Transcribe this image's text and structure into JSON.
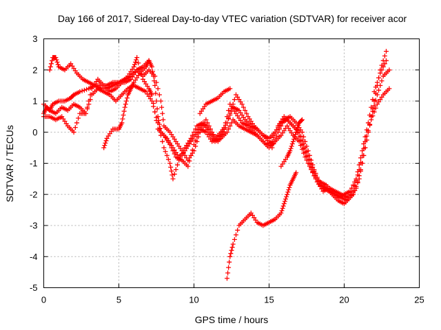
{
  "chart_data": {
    "type": "scatter",
    "title": "Day 166 of 2017, Sidereal Day-to-day VTEC variation (SDTVAR) for receiver acor",
    "xlabel": "GPS time / hours",
    "ylabel": "SDTVAR / TECUs",
    "xlim": [
      0,
      25
    ],
    "ylim": [
      -5,
      3
    ],
    "xticks": [
      0,
      5,
      10,
      15,
      20,
      25
    ],
    "yticks": [
      -5,
      -4,
      -3,
      -2,
      -1,
      0,
      1,
      2,
      3
    ],
    "grid": true,
    "marker": "+",
    "series_color": "#ff0000",
    "series": [
      {
        "points": [
          [
            0.0,
            0.6
          ],
          [
            0.2,
            0.8
          ],
          [
            0.4,
            0.7
          ],
          [
            0.6,
            0.9
          ],
          [
            1.0,
            1.0
          ],
          [
            1.4,
            1.0
          ],
          [
            1.8,
            1.1
          ],
          [
            2.0,
            1.2
          ],
          [
            2.4,
            1.3
          ],
          [
            3.0,
            1.4
          ],
          [
            3.4,
            1.5
          ],
          [
            3.8,
            1.5
          ],
          [
            4.2,
            1.5
          ],
          [
            4.6,
            1.6
          ],
          [
            5.0,
            1.6
          ],
          [
            5.4,
            1.7
          ],
          [
            5.8,
            1.8
          ],
          [
            6.2,
            2.0
          ],
          [
            6.6,
            2.1
          ],
          [
            7.0,
            2.3
          ],
          [
            7.2,
            2.1
          ],
          [
            7.4,
            1.5
          ],
          [
            7.6,
            0.5
          ],
          [
            7.8,
            0.0
          ],
          [
            8.2,
            -0.2
          ],
          [
            8.6,
            -0.5
          ],
          [
            9.0,
            -0.8
          ],
          [
            9.4,
            -0.6
          ],
          [
            9.8,
            -0.3
          ],
          [
            10.2,
            0.0
          ],
          [
            10.6,
            0.3
          ],
          [
            11.0,
            0.0
          ],
          [
            11.4,
            -0.2
          ],
          [
            11.8,
            0.0
          ],
          [
            12.2,
            0.3
          ],
          [
            12.6,
            0.8
          ],
          [
            13.0,
            0.7
          ],
          [
            13.4,
            0.4
          ],
          [
            13.8,
            0.2
          ],
          [
            14.2,
            0.1
          ],
          [
            14.6,
            -0.1
          ],
          [
            15.0,
            -0.2
          ],
          [
            15.4,
            0.0
          ],
          [
            15.8,
            0.3
          ],
          [
            16.2,
            0.4
          ],
          [
            16.6,
            0.2
          ],
          [
            17.0,
            0.0
          ],
          [
            17.4,
            -0.5
          ],
          [
            17.8,
            -1.0
          ],
          [
            18.2,
            -1.5
          ],
          [
            18.6,
            -1.8
          ],
          [
            19.0,
            -1.9
          ],
          [
            19.4,
            -2.0
          ],
          [
            19.8,
            -2.1
          ],
          [
            20.2,
            -2.2
          ],
          [
            20.6,
            -2.0
          ],
          [
            21.0,
            -1.5
          ],
          [
            21.4,
            -0.5
          ],
          [
            21.8,
            0.5
          ],
          [
            22.2,
            1.2
          ],
          [
            22.6,
            1.8
          ],
          [
            23.0,
            2.0
          ]
        ]
      },
      {
        "points": [
          [
            0.4,
            2.0
          ],
          [
            0.6,
            2.4
          ],
          [
            0.8,
            2.4
          ],
          [
            1.0,
            2.1
          ],
          [
            1.4,
            2.0
          ],
          [
            1.8,
            2.2
          ],
          [
            2.2,
            1.9
          ],
          [
            2.6,
            1.7
          ],
          [
            3.0,
            1.6
          ],
          [
            3.4,
            1.5
          ],
          [
            3.8,
            1.4
          ],
          [
            4.2,
            1.4
          ],
          [
            4.6,
            1.5
          ],
          [
            5.0,
            1.6
          ],
          [
            5.4,
            1.6
          ],
          [
            5.8,
            1.7
          ],
          [
            6.2,
            2.0
          ],
          [
            6.6,
            1.8
          ],
          [
            7.0,
            2.0
          ],
          [
            7.4,
            1.8
          ],
          [
            7.8,
            1.0
          ],
          [
            8.0,
            0.2
          ],
          [
            8.4,
            0.0
          ],
          [
            8.8,
            -0.3
          ],
          [
            9.2,
            -0.6
          ],
          [
            9.6,
            -0.9
          ],
          [
            10.0,
            -0.6
          ],
          [
            10.4,
            0.0
          ],
          [
            10.8,
            0.4
          ],
          [
            11.2,
            0.0
          ],
          [
            11.6,
            -0.3
          ],
          [
            12.0,
            0.0
          ],
          [
            12.4,
            0.6
          ],
          [
            12.8,
            1.2
          ],
          [
            13.2,
            0.9
          ],
          [
            13.6,
            0.5
          ],
          [
            14.0,
            0.2
          ],
          [
            14.4,
            0.0
          ],
          [
            14.8,
            -0.2
          ],
          [
            15.2,
            -0.5
          ],
          [
            15.6,
            0.0
          ],
          [
            16.0,
            0.4
          ],
          [
            16.4,
            0.5
          ],
          [
            16.8,
            0.3
          ],
          [
            17.2,
            0.0
          ],
          [
            17.6,
            -0.6
          ],
          [
            18.0,
            -1.2
          ],
          [
            18.4,
            -1.7
          ],
          [
            18.8,
            -1.8
          ],
          [
            19.2,
            -2.0
          ],
          [
            19.6,
            -2.2
          ],
          [
            20.0,
            -2.3
          ],
          [
            20.4,
            -2.1
          ],
          [
            20.8,
            -1.8
          ],
          [
            21.2,
            -1.0
          ],
          [
            21.6,
            0.0
          ],
          [
            22.0,
            1.0
          ],
          [
            22.4,
            2.0
          ],
          [
            22.8,
            2.6
          ]
        ]
      },
      {
        "points": [
          [
            0.0,
            0.5
          ],
          [
            0.4,
            0.5
          ],
          [
            0.8,
            0.4
          ],
          [
            1.2,
            0.5
          ],
          [
            1.6,
            0.2
          ],
          [
            2.0,
            0.0
          ],
          [
            2.4,
            0.6
          ],
          [
            2.8,
            0.6
          ],
          [
            3.2,
            1.2
          ],
          [
            3.6,
            1.4
          ],
          [
            4.0,
            1.3
          ],
          [
            4.4,
            1.2
          ],
          [
            4.8,
            1.0
          ],
          [
            5.2,
            1.2
          ],
          [
            5.6,
            1.4
          ],
          [
            6.0,
            1.5
          ],
          [
            6.4,
            1.4
          ],
          [
            6.8,
            1.3
          ],
          [
            7.2,
            1.0
          ],
          [
            7.6,
            0.3
          ],
          [
            8.0,
            -0.5
          ],
          [
            8.4,
            -1.0
          ],
          [
            8.6,
            -1.5
          ],
          [
            9.0,
            -0.9
          ],
          [
            9.4,
            -0.5
          ],
          [
            9.8,
            -0.2
          ],
          [
            10.2,
            0.2
          ],
          [
            10.6,
            0.3
          ],
          [
            11.0,
            0.1
          ],
          [
            11.4,
            -0.3
          ],
          [
            11.8,
            -0.2
          ],
          [
            12.2,
            0.0
          ],
          [
            12.6,
            0.4
          ],
          [
            13.0,
            0.2
          ],
          [
            13.4,
            0.1
          ],
          [
            13.8,
            0.0
          ],
          [
            14.2,
            -0.1
          ],
          [
            14.6,
            -0.3
          ],
          [
            15.0,
            -0.5
          ],
          [
            15.4,
            -0.3
          ],
          [
            15.8,
            -0.1
          ],
          [
            16.2,
            0.2
          ],
          [
            16.6,
            -0.1
          ],
          [
            17.0,
            -0.3
          ],
          [
            17.4,
            -0.8
          ],
          [
            17.8,
            -1.2
          ],
          [
            18.2,
            -1.6
          ],
          [
            18.6,
            -1.9
          ],
          [
            19.0,
            -1.8
          ],
          [
            19.4,
            -1.9
          ],
          [
            19.8,
            -2.0
          ],
          [
            20.2,
            -2.1
          ],
          [
            20.6,
            -1.9
          ],
          [
            21.0,
            -1.2
          ],
          [
            21.4,
            -0.3
          ],
          [
            21.8,
            0.4
          ],
          [
            22.2,
            0.9
          ],
          [
            22.6,
            1.2
          ],
          [
            23.0,
            1.4
          ]
        ]
      },
      {
        "points": [
          [
            0.0,
            0.9
          ],
          [
            0.4,
            0.7
          ],
          [
            0.8,
            0.6
          ],
          [
            1.2,
            0.8
          ],
          [
            1.6,
            0.7
          ],
          [
            2.0,
            0.9
          ],
          [
            2.4,
            0.8
          ],
          [
            2.8,
            0.6
          ],
          [
            3.2,
            1.4
          ],
          [
            3.6,
            1.7
          ],
          [
            4.0,
            1.5
          ],
          [
            4.4,
            1.3
          ],
          [
            4.8,
            1.4
          ],
          [
            5.2,
            1.6
          ],
          [
            5.6,
            1.8
          ],
          [
            6.0,
            2.1
          ],
          [
            6.2,
            2.4
          ],
          [
            6.6,
            1.7
          ],
          [
            7.0,
            1.4
          ],
          [
            7.2,
            1.2
          ],
          [
            7.6,
            0.1
          ],
          [
            8.0,
            -0.1
          ],
          [
            8.4,
            -0.4
          ],
          [
            8.8,
            -0.8
          ],
          [
            9.2,
            -0.9
          ],
          [
            9.6,
            -1.1
          ],
          [
            10.0,
            -0.4
          ],
          [
            10.4,
            0.1
          ],
          [
            10.8,
            0.0
          ],
          [
            11.2,
            -0.3
          ],
          [
            11.6,
            -0.2
          ],
          [
            12.0,
            0.1
          ],
          [
            12.4,
            0.9
          ],
          [
            12.8,
            0.6
          ],
          [
            13.2,
            0.3
          ],
          [
            13.6,
            0.2
          ],
          [
            14.0,
            0.0
          ],
          [
            14.4,
            -0.2
          ],
          [
            14.8,
            -0.4
          ],
          [
            15.2,
            -0.3
          ],
          [
            15.6,
            0.2
          ],
          [
            16.0,
            0.5
          ],
          [
            16.4,
            0.3
          ],
          [
            16.8,
            0.1
          ],
          [
            17.2,
            -0.4
          ],
          [
            17.6,
            -0.9
          ],
          [
            18.0,
            -1.4
          ],
          [
            18.4,
            -1.6
          ],
          [
            18.8,
            -1.7
          ],
          [
            19.2,
            -1.9
          ],
          [
            19.6,
            -2.1
          ],
          [
            20.0,
            -2.0
          ],
          [
            20.4,
            -1.9
          ],
          [
            20.8,
            -1.5
          ],
          [
            21.2,
            -0.6
          ],
          [
            21.6,
            0.3
          ],
          [
            22.0,
            1.3
          ],
          [
            22.4,
            1.9
          ],
          [
            22.8,
            2.3
          ]
        ]
      },
      {
        "points": [
          [
            4.0,
            -0.5
          ],
          [
            4.2,
            -0.2
          ],
          [
            4.6,
            0.1
          ],
          [
            5.0,
            0.1
          ],
          [
            5.2,
            0.3
          ],
          [
            5.4,
            0.8
          ],
          [
            5.6,
            1.2
          ],
          [
            5.8,
            1.4
          ],
          [
            6.0,
            1.6
          ],
          [
            6.4,
            1.9
          ],
          [
            6.8,
            2.1
          ],
          [
            7.0,
            2.3
          ]
        ]
      },
      {
        "points": [
          [
            10.4,
            0.6
          ],
          [
            10.8,
            0.9
          ],
          [
            11.2,
            1.0
          ],
          [
            11.6,
            1.1
          ],
          [
            12.0,
            1.3
          ],
          [
            12.4,
            1.4
          ]
        ]
      },
      {
        "points": [
          [
            12.2,
            -4.7
          ],
          [
            12.4,
            -4.0
          ],
          [
            12.6,
            -3.6
          ],
          [
            13.0,
            -3.0
          ],
          [
            13.4,
            -2.8
          ],
          [
            13.8,
            -2.6
          ],
          [
            14.2,
            -2.9
          ],
          [
            14.6,
            -3.0
          ],
          [
            15.0,
            -2.9
          ],
          [
            15.4,
            -2.8
          ],
          [
            15.8,
            -2.6
          ],
          [
            16.0,
            -2.3
          ],
          [
            16.2,
            -2.0
          ],
          [
            16.4,
            -1.7
          ],
          [
            16.6,
            -1.5
          ],
          [
            16.8,
            -1.3
          ]
        ]
      },
      {
        "points": [
          [
            15.8,
            -1.1
          ],
          [
            16.2,
            -0.8
          ],
          [
            16.4,
            -0.6
          ],
          [
            16.6,
            -0.3
          ],
          [
            16.8,
            0.0
          ],
          [
            17.0,
            0.3
          ],
          [
            17.2,
            0.4
          ]
        ]
      }
    ]
  }
}
